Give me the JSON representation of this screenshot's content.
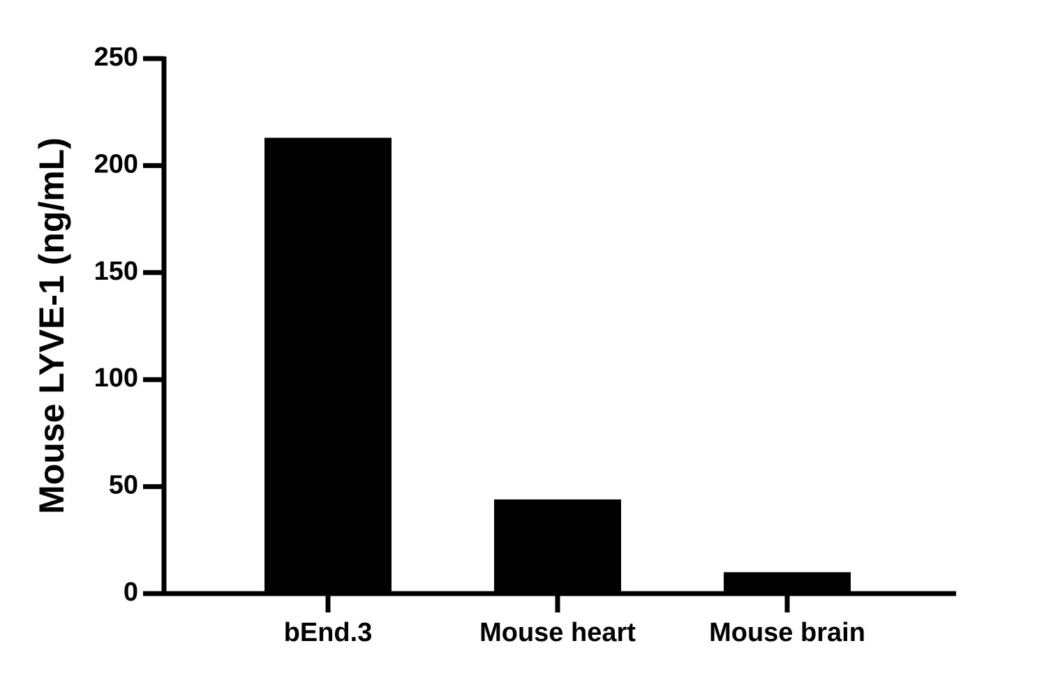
{
  "chart_data": {
    "type": "bar",
    "y_label": "Mouse LYVE-1 (ng/mL)",
    "categories": [
      "bEnd.3",
      "Mouse heart",
      "Mouse brain"
    ],
    "values": [
      213,
      44,
      10
    ],
    "color": "#000000",
    "ylim": [
      0,
      250
    ],
    "yticks": [
      0,
      50,
      100,
      150,
      200,
      250
    ],
    "grid": false
  }
}
